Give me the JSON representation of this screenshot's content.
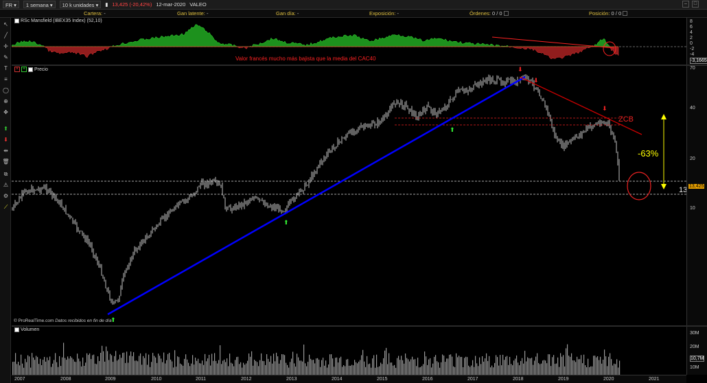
{
  "topbar": {
    "symbol": "FR",
    "period": "1 semana",
    "units": "10 k unidades",
    "change": "13,425 (-20,42%)",
    "date": "12-mar-2020",
    "name": "VALEO"
  },
  "infobar": {
    "cartera_label": "Cartera:",
    "cartera_val": "-",
    "gan_latente_label": "Gan latente:",
    "gan_latente_val": "-",
    "gan_dia_label": "Gan día:",
    "gan_dia_val": "-",
    "exposicion_label": "Exposición:",
    "exposicion_val": "-",
    "ordenes_label": "Órdenes:",
    "ordenes_val": "0 / 0",
    "posicion_label": "Posición:",
    "posicion_val": "0 / 0"
  },
  "indicator": {
    "title": "RSc Mansfield (IBEX35 Index) (52,10)",
    "annotation": "Valor francés mucho más bajista que la media del CAC40",
    "last_value": "-3,1665",
    "scale": [
      "8",
      "6",
      "4",
      "2",
      "0",
      "-2",
      "-4",
      "-6",
      "-8"
    ]
  },
  "price": {
    "title": "Precio",
    "zcb_label": "ZCB",
    "pct_label": "-63%",
    "level_label": "13",
    "last_price": "13,425",
    "scale": [
      "70",
      "40",
      "20",
      "10"
    ],
    "footer": "© ProRealTime.com",
    "footer_note": "Datos recibidos en fin de día"
  },
  "volume": {
    "title": "Volumen",
    "scale": [
      "30M",
      "20M",
      "10,7M",
      "10M"
    ]
  },
  "xaxis": {
    "years": [
      "2007",
      "2008",
      "2009",
      "2010",
      "2011",
      "2012",
      "2013",
      "2014",
      "2015",
      "2016",
      "2017",
      "2018",
      "2019",
      "2020",
      "2021"
    ]
  },
  "colors": {
    "accent_yellow": "#ffff00",
    "trend_blue": "#0000ff",
    "trend_red": "#cc0000",
    "rs_green": "#22aa22",
    "rs_red": "#aa2222",
    "annotation_red": "#ff2222"
  },
  "icons": [
    "cursor-icon",
    "line-icon",
    "crosshair-icon",
    "pen-icon",
    "text-icon",
    "fibonacci-icon",
    "ellipse-icon",
    "zoom-icon",
    "move-icon",
    "arrow-up-icon",
    "arrow-down-icon",
    "measure-icon",
    "trash-icon",
    "copy-icon",
    "alert-icon",
    "settings-icon",
    "color-icon"
  ]
}
